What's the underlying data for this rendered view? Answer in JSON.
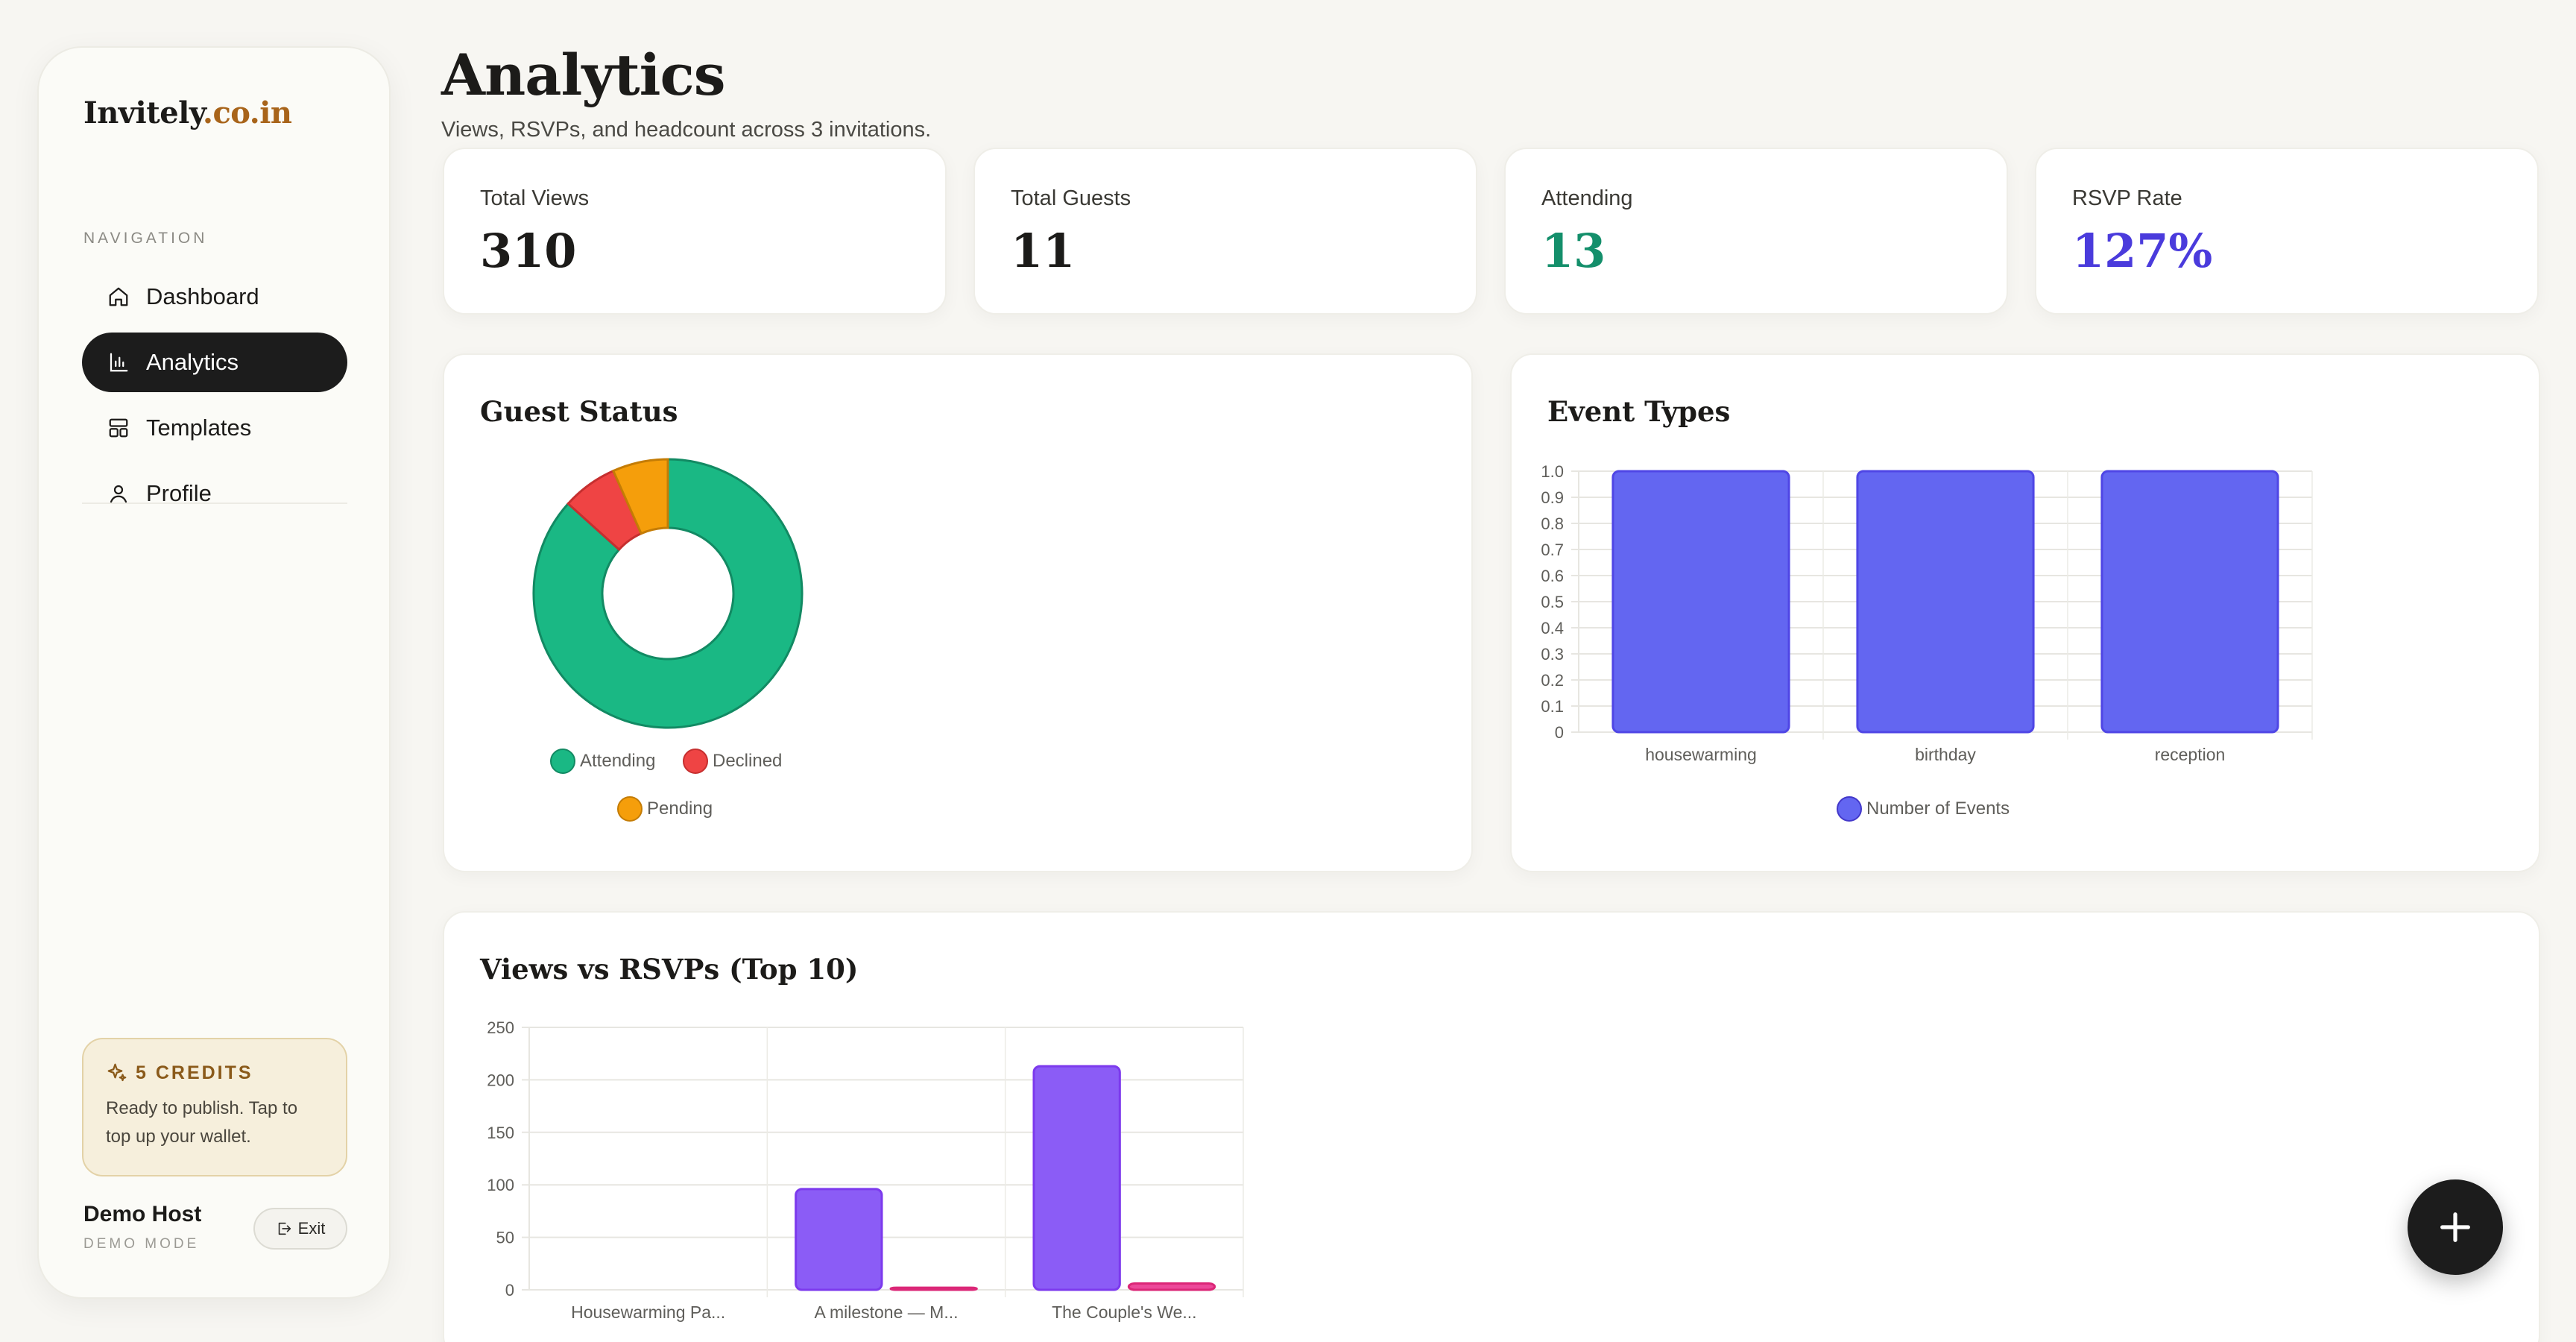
{
  "brand": {
    "name": "Invitely",
    "accent": ".co.in"
  },
  "nav": {
    "heading": "NAVIGATION",
    "items": [
      {
        "label": "Dashboard",
        "icon": "home-icon"
      },
      {
        "label": "Analytics",
        "icon": "bar-chart-icon",
        "active": true
      },
      {
        "label": "Templates",
        "icon": "layout-icon"
      },
      {
        "label": "Profile",
        "icon": "user-icon"
      }
    ]
  },
  "credits": {
    "title": "5 CREDITS",
    "text": "Ready to publish. Tap to top up your wallet."
  },
  "user": {
    "name": "Demo Host",
    "mode": "DEMO MODE",
    "exit_label": "Exit"
  },
  "header": {
    "title": "Analytics",
    "subtitle": "Views, RSVPs, and headcount across 3 invitations."
  },
  "stats": [
    {
      "label": "Total Views",
      "value": "310",
      "color": "#1c1b19"
    },
    {
      "label": "Total Guests",
      "value": "11",
      "color": "#1c1b19"
    },
    {
      "label": "Attending",
      "value": "13",
      "color": "#148f6b"
    },
    {
      "label": "RSVP Rate",
      "value": "127%",
      "color": "#4a3bdc"
    }
  ],
  "panels": {
    "guest_status": "Guest Status",
    "event_types": "Event Types",
    "views_rsvps": "Views vs RSVPs (Top 10)"
  },
  "chart_data": [
    {
      "type": "pie",
      "title": "Guest Status",
      "categories": [
        "Attending",
        "Declined",
        "Pending"
      ],
      "values": [
        13,
        1,
        1
      ],
      "colors": [
        "#1ab884",
        "#ef4444",
        "#f59e0b"
      ],
      "legend": "bottom"
    },
    {
      "type": "bar",
      "title": "Event Types",
      "categories": [
        "housewarming",
        "birthday",
        "reception"
      ],
      "series": [
        {
          "name": "Number of Events",
          "values": [
            1,
            1,
            1
          ],
          "color": "#6366f1"
        }
      ],
      "ylim": [
        0,
        1.0
      ],
      "yticks": [
        "0",
        "0.1",
        "0.2",
        "0.3",
        "0.4",
        "0.5",
        "0.6",
        "0.7",
        "0.8",
        "0.9",
        "1.0"
      ],
      "grid": true,
      "legend": "bottom"
    },
    {
      "type": "bar",
      "title": "Views vs RSVPs (Top 10)",
      "categories": [
        "Housewarming Pa...",
        "A milestone — M...",
        "The Couple's We..."
      ],
      "series": [
        {
          "values": [
            0,
            96,
            213
          ],
          "color": "#8b5cf6"
        },
        {
          "values": [
            0,
            2,
            6
          ],
          "color": "#ec4899"
        }
      ],
      "ylim": [
        0,
        250
      ],
      "yticks": [
        "0",
        "50",
        "100",
        "150",
        "200",
        "250"
      ],
      "grid": true
    }
  ]
}
